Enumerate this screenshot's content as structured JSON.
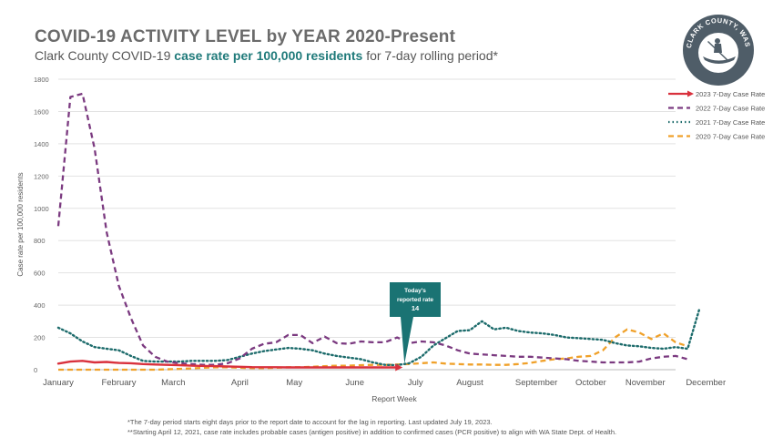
{
  "header": {
    "title": "COVID-19 ACTIVITY LEVEL by YEAR 2020-Present",
    "subtitle_pre": "Clark County COVID-19",
    "subtitle_highlight": "case rate per 100,000 residents",
    "subtitle_post": "for 7-day rolling period*"
  },
  "logo": {
    "text": "CLARK COUNTY, WASHINGTON",
    "colors": {
      "ring": "#4f5d68",
      "inner": "#ffffff"
    }
  },
  "callout": {
    "line1": "Today's",
    "line2": "reported rate",
    "value": "14",
    "color": "#1a7373"
  },
  "footnotes": {
    "line1": "*The 7-day period starts eight days prior to the report date to account for the lag in reporting. Last updated July 19, 2023.",
    "line2": "**Starting April 12, 2021, case rate includes probable cases (antigen positive) in addition to confirmed cases (PCR positive) to align with WA State Dept. of Health."
  },
  "chart_data": {
    "type": "line",
    "xlabel": "Report Week",
    "ylabel": "Case rate per 100,000 residents",
    "ylim": [
      0,
      1800
    ],
    "yticks": [
      0,
      200,
      400,
      600,
      800,
      1000,
      1200,
      1400,
      1600,
      1800
    ],
    "xlim": [
      0,
      51
    ],
    "x_tick_labels": [
      "January",
      "February",
      "March",
      "April",
      "May",
      "June",
      "July",
      "August",
      "September",
      "October",
      "November",
      "December"
    ],
    "x_tick_positions": [
      0,
      5,
      9.5,
      15,
      19.5,
      24.5,
      29.5,
      34,
      39.5,
      44,
      48.5,
      53.5
    ],
    "grid": true,
    "legend_position": "top-right",
    "series": [
      {
        "name": "2023 7-Day Case Rate",
        "style": "solid",
        "color": "#d9313d",
        "values": [
          38,
          50,
          55,
          45,
          48,
          42,
          40,
          35,
          32,
          30,
          28,
          25,
          23,
          22,
          20,
          18,
          16,
          15,
          15,
          14,
          14,
          14,
          14,
          14,
          14,
          14,
          14,
          14,
          14
        ]
      },
      {
        "name": "2022 7-Day Case Rate",
        "style": "dashed",
        "color": "#7b3a80",
        "values": [
          890,
          1690,
          1710,
          1370,
          850,
          520,
          320,
          150,
          80,
          50,
          40,
          35,
          30,
          30,
          40,
          70,
          130,
          160,
          170,
          215,
          215,
          165,
          205,
          165,
          160,
          175,
          170,
          170,
          200,
          165,
          175,
          170,
          150,
          120,
          100,
          95,
          90,
          85,
          80,
          80,
          75,
          70,
          65,
          55,
          50,
          45,
          45,
          45,
          50,
          70,
          80,
          85,
          65
        ]
      },
      {
        "name": "2021 7-Day Case Rate",
        "style": "dotted",
        "color": "#1c6b6b",
        "values": [
          260,
          225,
          175,
          140,
          130,
          120,
          85,
          55,
          50,
          50,
          50,
          55,
          55,
          55,
          60,
          80,
          100,
          115,
          125,
          135,
          130,
          120,
          100,
          85,
          75,
          65,
          45,
          30,
          28,
          40,
          80,
          150,
          195,
          240,
          245,
          300,
          250,
          260,
          240,
          230,
          225,
          215,
          200,
          195,
          190,
          185,
          165,
          150,
          145,
          135,
          130,
          140,
          130,
          385
        ]
      },
      {
        "name": "2020 7-Day Case Rate",
        "style": "dashed",
        "color": "#f0a12a",
        "values": [
          0,
          0,
          0,
          0,
          0,
          0,
          0,
          0,
          0,
          2,
          5,
          8,
          12,
          15,
          15,
          12,
          10,
          10,
          12,
          15,
          15,
          18,
          22,
          25,
          25,
          28,
          30,
          30,
          32,
          35,
          40,
          45,
          38,
          35,
          32,
          32,
          30,
          30,
          35,
          42,
          55,
          65,
          70,
          80,
          85,
          120,
          200,
          250,
          230,
          190,
          225,
          170,
          145
        ]
      }
    ]
  }
}
